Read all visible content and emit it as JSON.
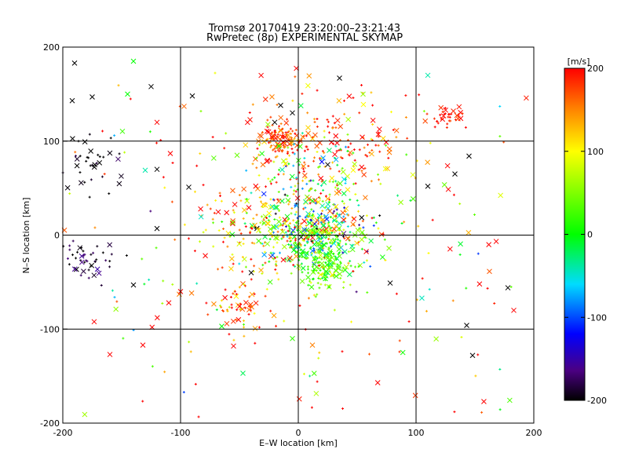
{
  "chart_data": {
    "type": "scatter",
    "title": "Tromsø 20170419 23:20:00–23:21:43",
    "subtitle": "RwPretec (8p) EXPERIMENTAL SKYMAP",
    "xlabel": "E–W location [km]",
    "ylabel": "N–S location [km]",
    "xlim": [
      -200,
      200
    ],
    "ylim": [
      -200,
      200
    ],
    "xticks": [
      -200,
      -100,
      0,
      100,
      200
    ],
    "yticks": [
      -200,
      -100,
      0,
      100,
      200
    ],
    "grid": true,
    "colorbar": {
      "label": "[m/s]",
      "min": -200,
      "max": 200,
      "ticks": [
        200,
        100,
        0,
        -100,
        -200
      ]
    },
    "clusters": [
      {
        "cx": 15,
        "cy": 5,
        "sx": 25,
        "sy": 20,
        "n": 380,
        "vel": 20,
        "vs": 90
      },
      {
        "cx": 20,
        "cy": -30,
        "sx": 12,
        "sy": 15,
        "n": 180,
        "vel": 30,
        "vs": 30
      },
      {
        "cx": -15,
        "cy": 100,
        "sx": 8,
        "sy": 8,
        "n": 90,
        "vel": 180,
        "vs": 30
      },
      {
        "cx": 125,
        "cy": 125,
        "sx": 8,
        "sy": 5,
        "n": 35,
        "vel": 190,
        "vs": 15
      },
      {
        "cx": -50,
        "cy": -75,
        "sx": 12,
        "sy": 12,
        "n": 60,
        "vel": 160,
        "vs": 50
      },
      {
        "cx": -180,
        "cy": -25,
        "sx": 15,
        "sy": 10,
        "n": 45,
        "vel": -190,
        "vs": 20
      },
      {
        "cx": -180,
        "cy": 75,
        "sx": 15,
        "sy": 15,
        "n": 40,
        "vel": -200,
        "vs": 10
      },
      {
        "cx": 30,
        "cy": 110,
        "sx": 35,
        "sy": 25,
        "n": 140,
        "vel": 180,
        "vs": 40
      },
      {
        "cx": 10,
        "cy": 55,
        "sx": 30,
        "sy": 30,
        "n": 160,
        "vel": 60,
        "vs": 110
      },
      {
        "cx": -30,
        "cy": 10,
        "sx": 30,
        "sy": 25,
        "n": 120,
        "vel": 140,
        "vs": 60
      },
      {
        "cx": 0,
        "cy": 0,
        "sx": 120,
        "sy": 110,
        "n": 260,
        "vel": 120,
        "vs": 120
      }
    ],
    "markers": [
      {
        "x": -190,
        "y": 183,
        "v": -200,
        "s": "x"
      },
      {
        "x": -192,
        "y": 143,
        "v": -200,
        "s": "x"
      },
      {
        "x": -175,
        "y": 147,
        "v": -200,
        "s": "x"
      },
      {
        "x": -140,
        "y": 185,
        "v": 0,
        "s": "x"
      },
      {
        "x": -145,
        "y": 150,
        "v": 0,
        "s": "x"
      },
      {
        "x": -125,
        "y": 158,
        "v": -200,
        "s": "x"
      },
      {
        "x": -120,
        "y": 120,
        "v": 200,
        "s": "x"
      },
      {
        "x": -90,
        "y": 148,
        "v": -200,
        "s": "x"
      },
      {
        "x": -97,
        "y": 137,
        "v": 160,
        "s": "x"
      },
      {
        "x": -160,
        "y": -127,
        "v": 200,
        "s": "x"
      },
      {
        "x": -132,
        "y": -117,
        "v": 200,
        "s": "x"
      },
      {
        "x": -140,
        "y": -53,
        "v": -200,
        "s": "x"
      },
      {
        "x": -130,
        "y": 69,
        "v": -40,
        "s": "x"
      },
      {
        "x": -120,
        "y": 70,
        "v": -200,
        "s": "x"
      },
      {
        "x": -120,
        "y": 7,
        "v": -200,
        "s": "x"
      },
      {
        "x": -93,
        "y": 51,
        "v": -200,
        "s": "x"
      },
      {
        "x": -110,
        "y": -72,
        "v": 200,
        "s": "x"
      },
      {
        "x": -100,
        "y": -60,
        "v": 200,
        "s": "x"
      },
      {
        "x": 35,
        "y": 167,
        "v": -200,
        "s": "x"
      },
      {
        "x": 110,
        "y": 170,
        "v": -40,
        "s": "x"
      },
      {
        "x": 145,
        "y": 84,
        "v": -200,
        "s": "x"
      },
      {
        "x": 133,
        "y": 65,
        "v": -200,
        "s": "x"
      },
      {
        "x": 110,
        "y": 52,
        "v": -200,
        "s": "x"
      },
      {
        "x": 78,
        "y": -51,
        "v": -200,
        "s": "x"
      },
      {
        "x": 178,
        "y": -56,
        "v": -200,
        "s": "x"
      },
      {
        "x": 183,
        "y": -80,
        "v": 200,
        "s": "x"
      },
      {
        "x": 143,
        "y": -96,
        "v": -200,
        "s": "x"
      },
      {
        "x": 148,
        "y": -128,
        "v": -200,
        "s": "x"
      },
      {
        "x": 12,
        "y": -117,
        "v": 150,
        "s": "x"
      },
      {
        "x": -47,
        "y": -147,
        "v": -20,
        "s": "x"
      },
      {
        "x": -5,
        "y": -110,
        "v": 20,
        "s": "x"
      },
      {
        "x": -65,
        "y": -97,
        "v": 0,
        "s": "x"
      },
      {
        "x": -55,
        "y": -118,
        "v": 200,
        "s": "x"
      },
      {
        "x": -20,
        "y": 120,
        "v": -200,
        "s": "x"
      },
      {
        "x": -15,
        "y": 138,
        "v": -200,
        "s": "x"
      },
      {
        "x": -5,
        "y": 130,
        "v": -200,
        "s": "x"
      },
      {
        "x": 20,
        "y": 78,
        "v": -120,
        "s": "x"
      },
      {
        "x": 25,
        "y": 75,
        "v": -200,
        "s": "x"
      },
      {
        "x": -52,
        "y": 85,
        "v": 40,
        "s": "x"
      },
      {
        "x": -40,
        "y": -40,
        "v": -200,
        "s": "x"
      },
      {
        "x": 55,
        "y": 150,
        "v": 60,
        "s": "x"
      }
    ]
  }
}
